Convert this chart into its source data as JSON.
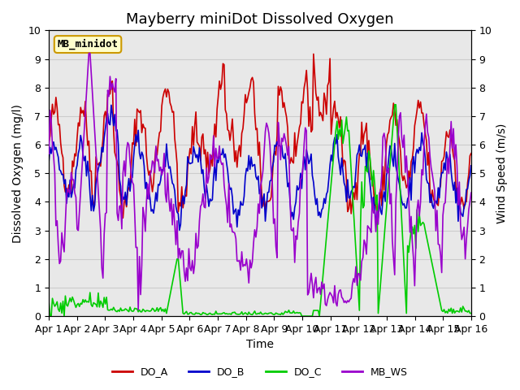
{
  "title": "Mayberry miniDot Dissolved Oxygen",
  "xlabel": "Time",
  "ylabel_left": "Dissolved Oxygen (mg/l)",
  "ylabel_right": "Wind Speed (m/s)",
  "ylim_left": [
    0.0,
    10.0
  ],
  "ylim_right": [
    0.0,
    10.0
  ],
  "yticks": [
    0.0,
    1.0,
    2.0,
    3.0,
    4.0,
    5.0,
    6.0,
    7.0,
    8.0,
    9.0,
    10.0
  ],
  "xtick_labels": [
    "Apr 1",
    "Apr 2",
    "Apr 3",
    "Apr 4",
    "Apr 5",
    "Apr 6",
    "Apr 7",
    "Apr 8",
    "Apr 9",
    "Apr 10",
    "Apr 11",
    "Apr 12",
    "Apr 13",
    "Apr 14",
    "Apr 15",
    "Apr 16"
  ],
  "n_points": 360,
  "color_DO_A": "#cc0000",
  "color_DO_B": "#0000cc",
  "color_DO_C": "#00cc00",
  "color_MB_WS": "#9900cc",
  "color_grid": "#cccccc",
  "bg_color": "#e8e8e8",
  "legend_box_color": "#ffffcc",
  "legend_box_edge": "#cc9900",
  "legend_text": "MB_minidot",
  "title_fontsize": 13,
  "label_fontsize": 10,
  "tick_fontsize": 9,
  "legend_fontsize": 9,
  "linewidth": 1.2
}
